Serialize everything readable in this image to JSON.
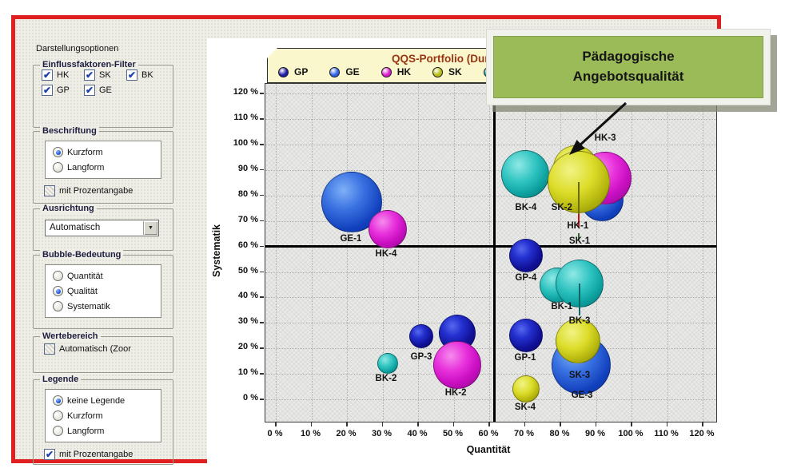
{
  "panel": {
    "title": "Darstellungsoptionen",
    "groups": {
      "filter": {
        "caption": "Einflussfaktoren-Filter",
        "checkboxes": [
          {
            "label": "HK",
            "checked": true
          },
          {
            "label": "SK",
            "checked": true
          },
          {
            "label": "BK",
            "checked": true
          },
          {
            "label": "GP",
            "checked": true
          },
          {
            "label": "GE",
            "checked": true
          }
        ]
      },
      "beschriftung": {
        "caption": "Beschriftung",
        "radios": [
          {
            "label": "Kurzform",
            "selected": true
          },
          {
            "label": "Langform",
            "selected": false
          }
        ],
        "checkbox": {
          "label": "mit Prozentangabe",
          "checked": false
        }
      },
      "ausrichtung": {
        "caption": "Ausrichtung",
        "dropdown": {
          "value": "Automatisch"
        }
      },
      "bubble": {
        "caption": "Bubble-Bedeutung",
        "radios": [
          {
            "label": "Quantität",
            "selected": false
          },
          {
            "label": "Qualität",
            "selected": true
          },
          {
            "label": "Systematik",
            "selected": false
          }
        ]
      },
      "wertebereich": {
        "caption": "Wertebereich",
        "checkbox": {
          "label": "Automatisch (Zoor",
          "checked": false
        }
      },
      "legende": {
        "caption": "Legende",
        "radios": [
          {
            "label": "keine Legende",
            "selected": true
          },
          {
            "label": "Kurzform",
            "selected": false
          },
          {
            "label": "Langform",
            "selected": false
          }
        ],
        "checkbox": {
          "label": "mit Prozentangabe",
          "checked": true
        }
      }
    }
  },
  "callout": {
    "line1": "Pädagogische",
    "line2": "Angebotsqualität"
  },
  "chart_data": {
    "type": "bubble",
    "title": "QQS-Portfolio (Durch",
    "x_label": "Quantität",
    "y_label": "Systematik",
    "x_range": [
      0,
      120
    ],
    "y_range": [
      0,
      120
    ],
    "tick_step": 10,
    "tick_suffix": " %",
    "grid": true,
    "legend_position": "top",
    "legend": [
      {
        "name": "GP",
        "color": "#1c1ca8"
      },
      {
        "name": "GE",
        "color": "#2e62e6"
      },
      {
        "name": "HK",
        "color": "#da18cc"
      },
      {
        "name": "SK",
        "color": "#b9ba10"
      },
      {
        "name": "BK",
        "color": "#12a4a4"
      }
    ],
    "crosshair": {
      "x": 61.5,
      "y": 60
    },
    "bubbles": [
      {
        "id": "GE-1",
        "group": "GE",
        "x": 21.3,
        "y": 77.4,
        "r": 38
      },
      {
        "id": "HK-4",
        "group": "HK",
        "x": 31.5,
        "y": 66.8,
        "r": 24
      },
      {
        "id": "BK-2",
        "group": "BK",
        "x": 31.5,
        "y": 14.1,
        "r": 13
      },
      {
        "id": "GP-3",
        "group": "GP",
        "x": 40.9,
        "y": 24.8,
        "r": 15
      },
      {
        "id": "GP-hidden",
        "group": "GP",
        "x": 51.0,
        "y": 26.0,
        "r": 23
      },
      {
        "id": "HK-2",
        "group": "HK",
        "x": 51.0,
        "y": 13.5,
        "r": 30
      },
      {
        "id": "GP-4",
        "group": "GP",
        "x": 70.3,
        "y": 56.4,
        "r": 21
      },
      {
        "id": "GP-1",
        "group": "GP",
        "x": 70.3,
        "y": 25.1,
        "r": 21
      },
      {
        "id": "SK-4",
        "group": "SK",
        "x": 70.3,
        "y": 4.0,
        "r": 17
      },
      {
        "id": "SK-1",
        "group": "SK",
        "x": 84.3,
        "y": 90.9,
        "r": 28
      },
      {
        "id": "GE-hidden",
        "group": "GE",
        "x": 91.7,
        "y": 78.4,
        "r": 27
      },
      {
        "id": "HK-3",
        "group": "HK",
        "x": 92.6,
        "y": 86.8,
        "r": 33
      },
      {
        "id": "BK-4",
        "group": "BK",
        "x": 70.1,
        "y": 88.4,
        "r": 30
      },
      {
        "id": "SK-2",
        "group": "SK",
        "x": 85.2,
        "y": 85.3,
        "r": 39
      },
      {
        "id": "BK-1",
        "group": "BK",
        "x": 79.1,
        "y": 44.8,
        "r": 22
      },
      {
        "id": "BK-3",
        "group": "BK",
        "x": 85.4,
        "y": 45.5,
        "r": 30
      },
      {
        "id": "GE-3",
        "group": "GE",
        "x": 85.8,
        "y": 13.5,
        "r": 37
      },
      {
        "id": "SK-3",
        "group": "SK",
        "x": 85.0,
        "y": 22.9,
        "r": 28
      }
    ],
    "labels": [
      {
        "text": "GE-1",
        "x": 21.1,
        "y": 63.0
      },
      {
        "text": "HK-4",
        "x": 31.0,
        "y": 57.1
      },
      {
        "text": "BK-2",
        "x": 31.0,
        "y": 8.2
      },
      {
        "text": "GP-3",
        "x": 40.9,
        "y": 16.6
      },
      {
        "text": "HK-2",
        "x": 50.6,
        "y": 2.5
      },
      {
        "text": "GP-4",
        "x": 70.3,
        "y": 47.6
      },
      {
        "text": "GP-1",
        "x": 70.1,
        "y": 16.3
      },
      {
        "text": "SK-4",
        "x": 70.1,
        "y": -3.1
      },
      {
        "text": "BK-4",
        "x": 70.3,
        "y": 75.2
      },
      {
        "text": "SK-2",
        "x": 80.4,
        "y": 75.2
      },
      {
        "text": "HK-3",
        "x": 92.6,
        "y": 102.5
      },
      {
        "text": "HK-1",
        "x": 84.9,
        "y": 68.0
      },
      {
        "text": "SK-1",
        "x": 85.4,
        "y": 62.1
      },
      {
        "text": "BK-1",
        "x": 80.4,
        "y": 36.4
      },
      {
        "text": "BK-3",
        "x": 85.4,
        "y": 30.7
      },
      {
        "text": "SK-3",
        "x": 85.4,
        "y": 9.4
      },
      {
        "text": "GE-3",
        "x": 86.1,
        "y": 1.6
      }
    ],
    "leaders": [
      {
        "x": 85.2,
        "y1": 85.3,
        "y2": 72.8,
        "color": "#6b6b00"
      },
      {
        "x": 85.2,
        "y1": 72.8,
        "y2": 67.8,
        "color": "#cc1111"
      },
      {
        "x": 85.2,
        "y1": 65.2,
        "y2": 62.6,
        "color": "#336633"
      },
      {
        "x": 85.4,
        "y1": 45.5,
        "y2": 33.0,
        "color": "#0e6666"
      }
    ]
  }
}
